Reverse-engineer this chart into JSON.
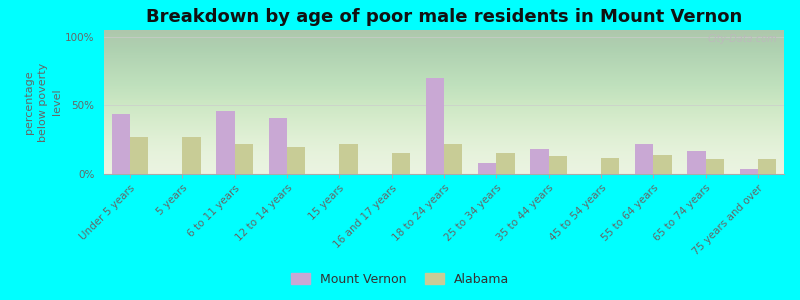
{
  "title": "Breakdown by age of poor male residents in Mount Vernon",
  "ylabel": "percentage\nbelow poverty\nlevel",
  "categories": [
    "Under 5 years",
    "5 years",
    "6 to 11 years",
    "12 to 14 years",
    "15 years",
    "16 and 17 years",
    "18 to 24 years",
    "25 to 34 years",
    "35 to 44 years",
    "45 to 54 years",
    "55 to 64 years",
    "65 to 74 years",
    "75 years and over"
  ],
  "mount_vernon": [
    44,
    0,
    46,
    41,
    0,
    0,
    70,
    8,
    18,
    0,
    22,
    17,
    4
  ],
  "alabama": [
    27,
    27,
    22,
    20,
    22,
    15,
    22,
    15,
    13,
    12,
    14,
    11,
    11
  ],
  "mv_color": "#c9a8d4",
  "al_color": "#c8cc96",
  "background_color": "#00ffff",
  "yticks": [
    0,
    50,
    100
  ],
  "ylim": [
    0,
    105
  ],
  "bar_width": 0.35,
  "title_fontsize": 13,
  "axis_label_fontsize": 8,
  "tick_fontsize": 7.5,
  "legend_fontsize": 9,
  "watermark": "City-Data.com"
}
